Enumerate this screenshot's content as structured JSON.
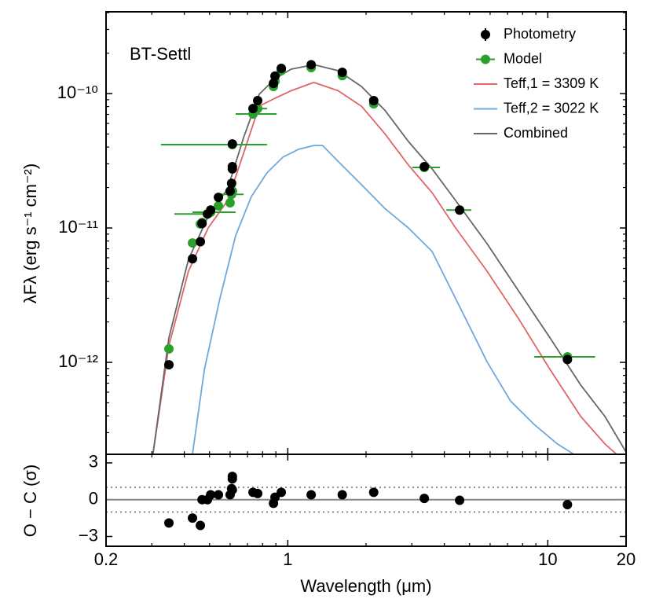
{
  "chart_data": [
    {
      "type": "line",
      "annotation": "BT-Settl",
      "ylabel": "λFλ (erg s⁻¹ cm⁻²)",
      "xscale": "log",
      "yscale": "log",
      "xlim": [
        0.2,
        20
      ],
      "ylim": [
        2.07e-13,
        4.06e-10
      ],
      "yticks": [
        {
          "value": 1e-12,
          "label": "10⁻¹²"
        },
        {
          "value": 1e-11,
          "label": "10⁻¹¹"
        },
        {
          "value": 1e-10,
          "label": "10⁻¹⁰"
        }
      ],
      "legend": "upper right",
      "photometry": {
        "name": "Photometry",
        "color": "#000000",
        "x": [
          0.349,
          0.43,
          0.461,
          0.468,
          0.491,
          0.505,
          0.541,
          0.6,
          0.608,
          0.612,
          0.612,
          0.612,
          0.735,
          0.766,
          0.881,
          0.893,
          0.944,
          1.23,
          1.62,
          2.14,
          3.35,
          4.58,
          11.9
        ],
        "values": [
          9.6e-13,
          5.9e-12,
          7.9e-12,
          1.08e-11,
          1.27e-11,
          1.36e-11,
          1.69e-11,
          1.88e-11,
          2.15e-11,
          2.75e-11,
          2.86e-11,
          4.22e-11,
          7.74e-11,
          8.86e-11,
          1.19e-10,
          1.35e-10,
          1.54e-10,
          1.64e-10,
          1.44e-10,
          8.86e-11,
          2.86e-11,
          1.36e-11,
          1.05e-12
        ]
      },
      "model": {
        "name": "Model",
        "color": "#2ca02c",
        "values": [
          1.26e-12,
          7.74e-12,
          1.07e-11,
          1.1e-11,
          1.27e-11,
          1.31e-11,
          1.46e-11,
          1.54e-11,
          1.78e-11,
          1.88e-11,
          1.88e-11,
          4.17e-11,
          7.05e-11,
          7.74e-11,
          1.13e-10,
          1.24e-10,
          1.48e-10,
          1.56e-10,
          1.36e-10,
          8.39e-11,
          2.82e-11,
          1.36e-11,
          1.1e-12
        ],
        "x_min": [
          null,
          null,
          null,
          null,
          0.366,
          0.43,
          null,
          null,
          0.537,
          null,
          null,
          0.325,
          0.63,
          0.715,
          null,
          null,
          null,
          null,
          null,
          null,
          3.01,
          4.07,
          8.87
        ],
        "x_max": [
          null,
          null,
          null,
          null,
          0.512,
          0.63,
          null,
          null,
          0.676,
          null,
          null,
          0.832,
          0.906,
          0.832,
          null,
          null,
          null,
          null,
          null,
          null,
          3.85,
          5.08,
          15.2
        ]
      },
      "series": [
        {
          "name": "Teff,1 = 3309 K",
          "color": "#e06666",
          "x": [
            0.303,
            0.349,
            0.415,
            0.494,
            0.587,
            0.676,
            0.776,
            0.893,
            1.03,
            1.26,
            1.56,
            1.92,
            2.36,
            2.91,
            3.59,
            4.42,
            5.84,
            7.71,
            10.2,
            13.4,
            16.6,
            18.4
          ],
          "values": [
            2.07e-13,
            1.33e-12,
            4.77e-12,
            1e-11,
            1.6e-11,
            3.6e-11,
            8.06e-11,
            9.23e-11,
            1.05e-10,
            1.21e-10,
            1.05e-10,
            8.06e-11,
            5.04e-11,
            2.94e-11,
            1.83e-11,
            1e-11,
            4.77e-12,
            2.12e-12,
            8.85e-13,
            3.95e-13,
            2.47e-13,
            2.07e-13
          ]
        },
        {
          "name": "Teff,2 = 3022 K",
          "color": "#6fa8dc",
          "x": [
            0.43,
            0.478,
            0.548,
            0.63,
            0.724,
            0.832,
            0.957,
            1.1,
            1.26,
            1.36,
            1.56,
            1.92,
            2.36,
            2.91,
            3.59,
            4.42,
            5.08,
            5.84,
            7.19,
            8.87,
            10.9,
            12.6
          ],
          "values": [
            2.07e-13,
            8.85e-13,
            2.98e-12,
            8.75e-12,
            1.71e-11,
            2.57e-11,
            3.36e-11,
            3.85e-11,
            4.11e-11,
            4.11e-11,
            3.14e-11,
            2.1e-11,
            1.4e-11,
            1e-11,
            6.68e-12,
            2.98e-12,
            1.74e-12,
            1.01e-12,
            5.16e-13,
            3.45e-13,
            2.47e-13,
            2.07e-13
          ]
        },
        {
          "name": "Combined",
          "color": "#666666",
          "x": [
            0.303,
            0.349,
            0.415,
            0.494,
            0.587,
            0.676,
            0.776,
            0.893,
            1.03,
            1.26,
            1.56,
            1.92,
            2.36,
            2.91,
            3.59,
            4.42,
            5.84,
            7.71,
            10.2,
            13.4,
            16.6,
            20
          ],
          "values": [
            2.07e-13,
            1.52e-12,
            5.83e-12,
            1.22e-11,
            1.96e-11,
            4.71e-11,
            9.87e-11,
            1.29e-10,
            1.52e-10,
            1.64e-10,
            1.48e-10,
            1.13e-10,
            7.53e-11,
            4.4e-11,
            2.75e-11,
            1.6e-11,
            7.64e-12,
            3.41e-12,
            1.52e-12,
            6.76e-13,
            3.95e-13,
            2.15e-13
          ]
        }
      ]
    },
    {
      "type": "scatter",
      "xlabel": "Wavelength (μm)",
      "ylabel": "O − C (σ)",
      "xscale": "log",
      "xlim": [
        0.2,
        20
      ],
      "xticks": [
        0.2,
        1,
        10,
        20
      ],
      "ylim": [
        -3.8,
        3.7
      ],
      "yticks": [
        {
          "value": -3,
          "label": "−3"
        },
        0,
        3
      ],
      "hlines": [
        -1,
        0,
        1
      ],
      "color": "#000000",
      "x": [
        0.349,
        0.43,
        0.461,
        0.468,
        0.491,
        0.505,
        0.541,
        0.6,
        0.608,
        0.612,
        0.612,
        0.612,
        0.735,
        0.766,
        0.881,
        0.893,
        0.944,
        1.23,
        1.62,
        2.14,
        3.35,
        4.58,
        11.9
      ],
      "values": [
        -1.9,
        -1.5,
        -2.1,
        0.0,
        0.0,
        0.4,
        0.4,
        0.4,
        0.9,
        1.7,
        1.9,
        0.8,
        0.6,
        0.5,
        -0.3,
        0.2,
        0.6,
        0.4,
        0.4,
        0.6,
        0.1,
        -0.05,
        -0.4
      ]
    }
  ]
}
